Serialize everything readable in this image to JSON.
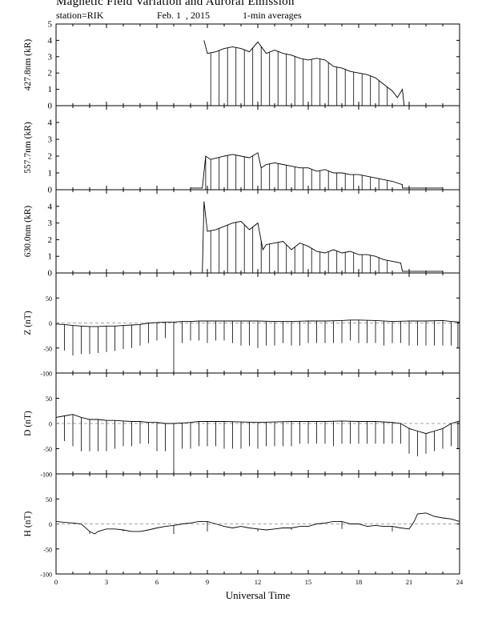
{
  "header": {
    "title": "Magnetic Field Variation and Auroral Emission",
    "station": "station=RIK",
    "date": "Feb. 1  , 2015",
    "averaging": "1-min averages"
  },
  "chart_data": [
    {
      "type": "line",
      "ylabel": "427.8nm (kR)",
      "ylim": [
        0,
        5
      ],
      "yticks": [
        0,
        1,
        2,
        3,
        4,
        5
      ],
      "xlim": [
        0,
        24
      ],
      "series": [
        {
          "x": [
            8.8,
            9.0,
            9.5,
            10.0,
            10.5,
            11.0,
            11.5,
            12.0,
            12.5,
            13.0,
            13.5,
            14.0,
            14.5,
            15.0,
            15.5,
            16.0,
            16.5,
            17.0,
            17.5,
            18.0,
            18.5,
            19.0,
            19.5,
            20.0,
            20.3,
            20.6,
            20.7
          ],
          "y": [
            4.0,
            3.2,
            3.3,
            3.5,
            3.6,
            3.5,
            3.3,
            3.9,
            3.2,
            3.4,
            3.2,
            3.1,
            2.9,
            2.8,
            2.9,
            2.8,
            2.4,
            2.3,
            2.1,
            2.0,
            1.9,
            1.7,
            1.3,
            0.9,
            0.5,
            1.0,
            0.0
          ],
          "spikes": [
            9.2,
            9.7,
            10.2,
            10.7,
            11.2,
            11.7,
            12.2,
            12.7,
            13.2,
            13.7,
            14.2,
            14.7,
            15.2,
            15.7,
            16.2,
            16.7,
            17.2,
            17.7,
            18.2,
            18.7,
            19.2,
            19.7
          ]
        }
      ]
    },
    {
      "type": "line",
      "ylabel": "557.7nm (kR)",
      "ylim": [
        0,
        5
      ],
      "yticks": [
        0,
        1,
        2,
        3,
        4
      ],
      "xlim": [
        0,
        24
      ],
      "series": [
        {
          "x": [
            8.0,
            8.7,
            8.9,
            9.2,
            9.6,
            10.0,
            10.5,
            11.0,
            11.5,
            12.0,
            12.2,
            12.5,
            13.0,
            13.5,
            14.0,
            14.5,
            15.0,
            15.5,
            16.0,
            16.5,
            17.0,
            17.5,
            18.0,
            18.5,
            19.0,
            19.5,
            20.0,
            20.6,
            20.6,
            23.0
          ],
          "y": [
            0.1,
            0.1,
            2.0,
            1.8,
            1.9,
            2.0,
            2.1,
            2.0,
            1.9,
            2.2,
            1.3,
            1.5,
            1.6,
            1.5,
            1.4,
            1.3,
            1.3,
            1.1,
            1.2,
            1.0,
            1.0,
            0.9,
            0.9,
            0.8,
            0.7,
            0.6,
            0.5,
            0.3,
            0.1,
            0.1
          ],
          "spikes": [
            8.9,
            9.2,
            9.7,
            10.2,
            10.7,
            11.2,
            11.7,
            12.2,
            12.7,
            13.2,
            13.7,
            14.2,
            14.7,
            15.2,
            15.7,
            16.2,
            16.7,
            17.2,
            17.7,
            18.2,
            18.7,
            19.2,
            19.7
          ]
        }
      ]
    },
    {
      "type": "line",
      "ylabel": "630.0nm (kR)",
      "ylim": [
        0,
        5
      ],
      "yticks": [
        0,
        1,
        2,
        3,
        4
      ],
      "xlim": [
        0,
        24
      ],
      "series": [
        {
          "x": [
            8.0,
            8.7,
            8.8,
            9.0,
            9.5,
            10.0,
            10.5,
            11.0,
            11.5,
            12.0,
            12.3,
            12.5,
            13.0,
            13.5,
            14.0,
            14.5,
            15.0,
            15.5,
            16.0,
            16.5,
            17.0,
            17.5,
            18.0,
            18.5,
            19.0,
            19.5,
            20.0,
            20.5,
            20.6,
            23.0
          ],
          "y": [
            0.0,
            0.0,
            4.3,
            2.5,
            2.6,
            2.8,
            3.0,
            3.1,
            2.6,
            3.0,
            1.4,
            1.7,
            1.8,
            1.9,
            1.4,
            1.8,
            1.6,
            1.3,
            1.2,
            1.4,
            1.2,
            1.3,
            1.1,
            1.1,
            1.0,
            0.8,
            0.7,
            0.6,
            0.1,
            0.1
          ],
          "spikes": [
            9.2,
            9.7,
            10.2,
            10.7,
            11.2,
            11.7,
            12.2,
            12.7,
            13.2,
            13.7,
            14.2,
            14.7,
            15.2,
            15.7,
            16.2,
            16.7,
            17.2,
            17.7,
            18.2,
            18.7,
            19.2,
            19.7
          ]
        }
      ]
    },
    {
      "type": "line",
      "ylabel": "Z (nT)",
      "ylim": [
        -100,
        100
      ],
      "yticks": [
        -100,
        -50,
        0,
        50
      ],
      "xlim": [
        0,
        24
      ],
      "baseline": 0,
      "series": [
        {
          "x": [
            0,
            0.5,
            1,
            1.5,
            2,
            2.5,
            3,
            3.5,
            4,
            4.5,
            5,
            5.5,
            6,
            6.5,
            7,
            7.5,
            8,
            8.5,
            9,
            9.5,
            10,
            11,
            12,
            13,
            14,
            15,
            16,
            17,
            17.5,
            18,
            19,
            20,
            21,
            22,
            23,
            23.5,
            24
          ],
          "y": [
            -2,
            -3,
            -5,
            -6,
            -7,
            -7,
            -6,
            -6,
            -5,
            -4,
            -3,
            0,
            1,
            2,
            2,
            3,
            3,
            4,
            4,
            4,
            4,
            4,
            4,
            3,
            3,
            4,
            4,
            5,
            6,
            6,
            5,
            3,
            4,
            4,
            5,
            3,
            2
          ],
          "spikes": [
            {
              "x": 0.5,
              "y": -55
            },
            {
              "x": 1.0,
              "y": -65
            },
            {
              "x": 1.5,
              "y": -62
            },
            {
              "x": 2.0,
              "y": -62
            },
            {
              "x": 2.5,
              "y": -60
            },
            {
              "x": 3.0,
              "y": -58
            },
            {
              "x": 3.5,
              "y": -56
            },
            {
              "x": 4.0,
              "y": -52
            },
            {
              "x": 4.5,
              "y": -50
            },
            {
              "x": 5.0,
              "y": -45
            },
            {
              "x": 5.5,
              "y": -40
            },
            {
              "x": 6.0,
              "y": -35
            },
            {
              "x": 6.5,
              "y": -30
            },
            {
              "x": 7.0,
              "y": -100
            },
            {
              "x": 7.5,
              "y": -40
            },
            {
              "x": 8.0,
              "y": -35
            },
            {
              "x": 8.5,
              "y": -35
            },
            {
              "x": 9.0,
              "y": -40
            },
            {
              "x": 9.5,
              "y": -35
            },
            {
              "x": 10.0,
              "y": -35
            },
            {
              "x": 10.5,
              "y": -40
            },
            {
              "x": 11.0,
              "y": -45
            },
            {
              "x": 11.5,
              "y": -45
            },
            {
              "x": 12.0,
              "y": -50
            },
            {
              "x": 12.5,
              "y": -45
            },
            {
              "x": 13.0,
              "y": -45
            },
            {
              "x": 13.5,
              "y": -40
            },
            {
              "x": 14.0,
              "y": -45
            },
            {
              "x": 14.5,
              "y": -45
            },
            {
              "x": 15.0,
              "y": -40
            },
            {
              "x": 15.5,
              "y": -40
            },
            {
              "x": 16.0,
              "y": -40
            },
            {
              "x": 16.5,
              "y": -40
            },
            {
              "x": 17.0,
              "y": -40
            },
            {
              "x": 17.5,
              "y": -35
            },
            {
              "x": 18.0,
              "y": -40
            },
            {
              "x": 18.5,
              "y": -40
            },
            {
              "x": 19.0,
              "y": -40
            },
            {
              "x": 19.5,
              "y": -45
            },
            {
              "x": 20.0,
              "y": -40
            },
            {
              "x": 20.5,
              "y": -40
            },
            {
              "x": 21.0,
              "y": -45
            },
            {
              "x": 21.5,
              "y": -45
            },
            {
              "x": 22.0,
              "y": -45
            },
            {
              "x": 22.5,
              "y": -45
            },
            {
              "x": 23.0,
              "y": -45
            },
            {
              "x": 23.5,
              "y": -45
            },
            {
              "x": 23.9,
              "y": -50
            }
          ]
        }
      ]
    },
    {
      "type": "line",
      "ylabel": "D (nT)",
      "ylim": [
        -100,
        100
      ],
      "yticks": [
        -100,
        -50,
        0,
        50
      ],
      "xlim": [
        0,
        24
      ],
      "baseline": 0,
      "series": [
        {
          "x": [
            0,
            0.5,
            1,
            1.5,
            2,
            2.5,
            3,
            3.5,
            4,
            4.5,
            5,
            5.5,
            6,
            6.5,
            7,
            7.5,
            8,
            8.5,
            9,
            10,
            11,
            12,
            13,
            14,
            15,
            16,
            17,
            18,
            19,
            20,
            20.5,
            21,
            21.5,
            22,
            22.5,
            23,
            23.5,
            24
          ],
          "y": [
            12,
            15,
            18,
            12,
            8,
            8,
            6,
            6,
            5,
            4,
            4,
            2,
            2,
            0,
            0,
            1,
            2,
            4,
            4,
            4,
            3,
            2,
            3,
            4,
            4,
            4,
            5,
            4,
            4,
            2,
            0,
            -10,
            -15,
            -20,
            -15,
            -10,
            0,
            5
          ],
          "spikes": [
            {
              "x": 0.5,
              "y": -35
            },
            {
              "x": 1.0,
              "y": -45
            },
            {
              "x": 1.5,
              "y": -55
            },
            {
              "x": 2.0,
              "y": -55
            },
            {
              "x": 2.5,
              "y": -55
            },
            {
              "x": 3.0,
              "y": -55
            },
            {
              "x": 3.5,
              "y": -50
            },
            {
              "x": 4.0,
              "y": -45
            },
            {
              "x": 4.5,
              "y": -45
            },
            {
              "x": 5.0,
              "y": -40
            },
            {
              "x": 5.5,
              "y": -40
            },
            {
              "x": 6.0,
              "y": -55
            },
            {
              "x": 6.5,
              "y": -55
            },
            {
              "x": 7.0,
              "y": -100
            },
            {
              "x": 7.5,
              "y": -50
            },
            {
              "x": 8.0,
              "y": -50
            },
            {
              "x": 8.5,
              "y": -45
            },
            {
              "x": 9.0,
              "y": -45
            },
            {
              "x": 9.5,
              "y": -45
            },
            {
              "x": 10.0,
              "y": -50
            },
            {
              "x": 10.5,
              "y": -50
            },
            {
              "x": 11.0,
              "y": -50
            },
            {
              "x": 11.5,
              "y": -45
            },
            {
              "x": 12.0,
              "y": -50
            },
            {
              "x": 12.5,
              "y": -45
            },
            {
              "x": 13.0,
              "y": -45
            },
            {
              "x": 13.5,
              "y": -45
            },
            {
              "x": 14.0,
              "y": -45
            },
            {
              "x": 14.5,
              "y": -40
            },
            {
              "x": 15.0,
              "y": -40
            },
            {
              "x": 15.5,
              "y": -40
            },
            {
              "x": 16.0,
              "y": -40
            },
            {
              "x": 16.5,
              "y": -45
            },
            {
              "x": 17.0,
              "y": -40
            },
            {
              "x": 17.5,
              "y": -40
            },
            {
              "x": 18.0,
              "y": -40
            },
            {
              "x": 18.5,
              "y": -40
            },
            {
              "x": 19.0,
              "y": -40
            },
            {
              "x": 19.5,
              "y": -40
            },
            {
              "x": 20.0,
              "y": -40
            },
            {
              "x": 20.5,
              "y": -40
            },
            {
              "x": 21.0,
              "y": -60
            },
            {
              "x": 21.5,
              "y": -65
            },
            {
              "x": 22.0,
              "y": -60
            },
            {
              "x": 22.5,
              "y": -55
            },
            {
              "x": 23.0,
              "y": -50
            },
            {
              "x": 23.5,
              "y": -45
            },
            {
              "x": 23.9,
              "y": -50
            }
          ]
        }
      ]
    },
    {
      "type": "line",
      "ylabel": "H (nT)",
      "xlabel": "Universal Time",
      "ylim": [
        -100,
        100
      ],
      "yticks": [
        -100,
        -50,
        0,
        50
      ],
      "xlim": [
        0,
        24
      ],
      "xticks": [
        0,
        3,
        6,
        9,
        12,
        15,
        18,
        21,
        24
      ],
      "baseline": 0,
      "series": [
        {
          "x": [
            0,
            0.5,
            1,
            1.5,
            2,
            2.3,
            2.5,
            3,
            3.5,
            4,
            4.5,
            5,
            5.5,
            6,
            6.5,
            7,
            7.5,
            8,
            8.5,
            9,
            9.5,
            10,
            10.5,
            11,
            11.5,
            12,
            12.5,
            13,
            13.5,
            14,
            14.5,
            15,
            15.5,
            16,
            16.5,
            17,
            17.5,
            18,
            18.5,
            19,
            19.5,
            20,
            20.5,
            21,
            21.3,
            21.5,
            22,
            22.5,
            23,
            23.5,
            24
          ],
          "y": [
            5,
            3,
            2,
            0,
            -15,
            -20,
            -15,
            -10,
            -10,
            -12,
            -15,
            -15,
            -12,
            -8,
            -5,
            -3,
            0,
            2,
            5,
            5,
            0,
            -5,
            -8,
            -5,
            -8,
            -10,
            -12,
            -10,
            -8,
            -8,
            -5,
            -5,
            0,
            2,
            5,
            5,
            0,
            0,
            -5,
            -3,
            -5,
            -5,
            -8,
            -10,
            5,
            20,
            22,
            15,
            12,
            10,
            5
          ],
          "spikes": [
            {
              "x": 2.0,
              "y": -20
            },
            {
              "x": 4.0,
              "y": -15
            },
            {
              "x": 7.0,
              "y": -20
            },
            {
              "x": 9.0,
              "y": -15
            },
            {
              "x": 12.0,
              "y": -15
            },
            {
              "x": 14.0,
              "y": -12
            },
            {
              "x": 17.0,
              "y": -10
            },
            {
              "x": 20.0,
              "y": -15
            }
          ]
        }
      ]
    }
  ]
}
